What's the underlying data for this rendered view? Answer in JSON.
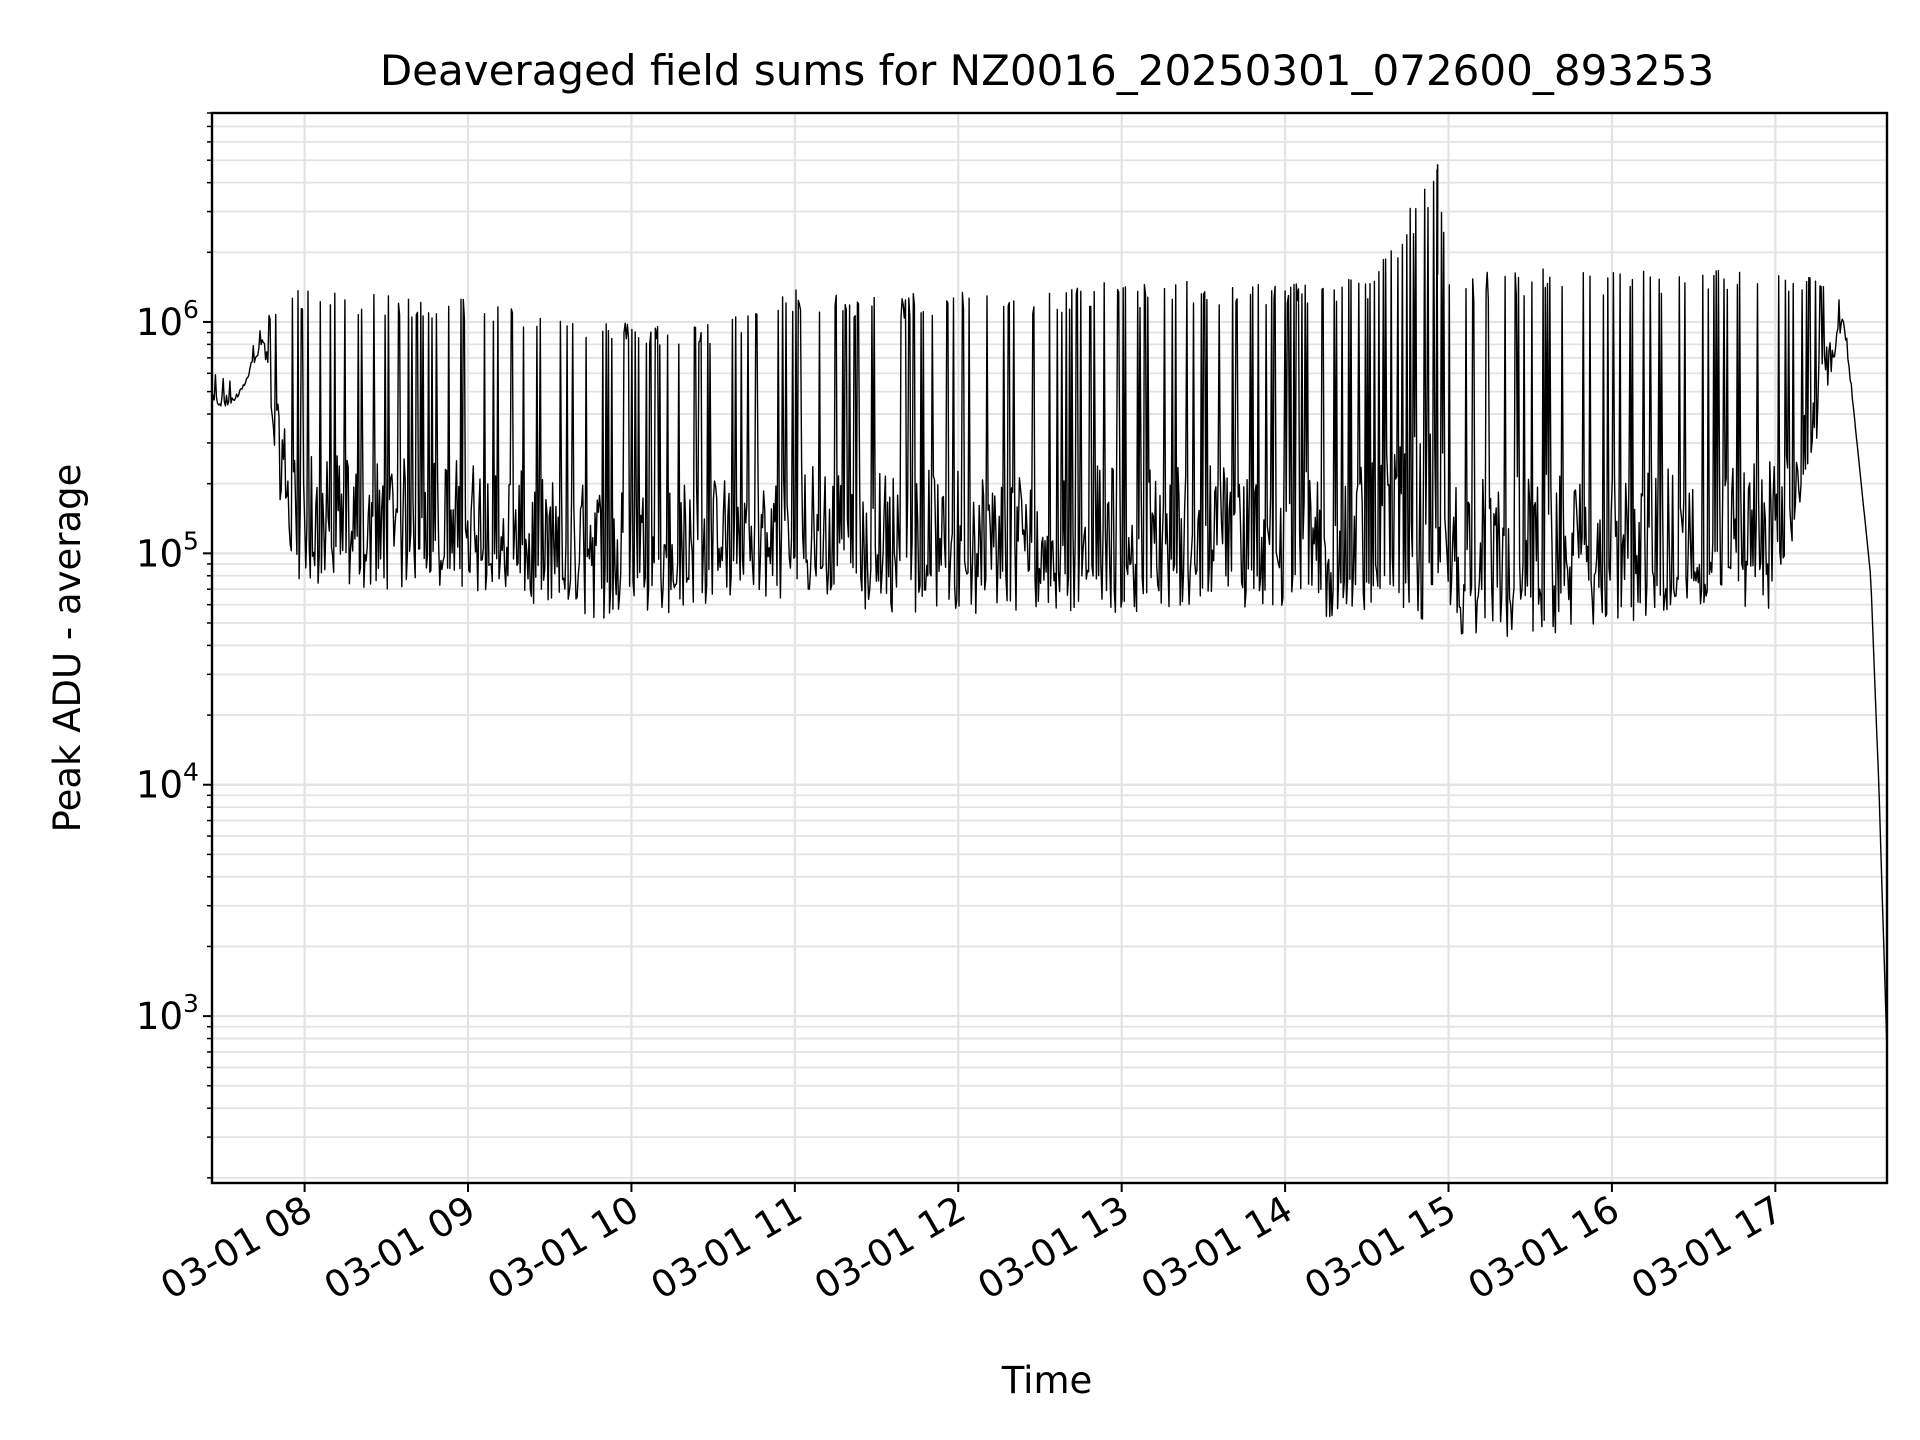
{
  "chart_data": {
    "type": "line",
    "title": "Deaveraged field sums for NZ0016_20250301_072600_893253",
    "xlabel": "Time",
    "ylabel": "Peak ADU - average",
    "yscale": "log",
    "ylim": [
      190,
      8000000
    ],
    "xlim": [
      "03-01 07:26",
      "03-01 17:41"
    ],
    "grid": true,
    "legend": "none",
    "line_color": "#000000",
    "x_ticks": [
      "03-01 08",
      "03-01 09",
      "03-01 10",
      "03-01 11",
      "03-01 12",
      "03-01 13",
      "03-01 14",
      "03-01 15",
      "03-01 16",
      "03-01 17"
    ],
    "y_ticks": [
      {
        "value": 1000,
        "base": "10",
        "exp": "3"
      },
      {
        "value": 10000,
        "base": "10",
        "exp": "4"
      },
      {
        "value": 100000,
        "base": "10",
        "exp": "5"
      },
      {
        "value": 1000000,
        "base": "10",
        "exp": "6"
      }
    ],
    "series": [
      {
        "x": [
          "03-01 07:26",
          "03-01 07:35",
          "03-01 07:45",
          "03-01 07:50",
          "03-01 07:55",
          "03-01 08:00",
          "03-01 08:30",
          "03-01 09:00",
          "03-01 09:30",
          "03-01 10:00",
          "03-01 10:30",
          "03-01 11:00",
          "03-01 11:30",
          "03-01 12:00",
          "03-01 12:30",
          "03-01 13:00",
          "03-01 13:30",
          "03-01 14:00",
          "03-01 14:30",
          "03-01 14:56",
          "03-01 15:00",
          "03-01 15:30",
          "03-01 16:00",
          "03-01 16:30",
          "03-01 17:00",
          "03-01 17:15",
          "03-01 17:25",
          "03-01 17:30",
          "03-01 17:35",
          "03-01 17:38",
          "03-01 17:40",
          "03-01 17:41"
        ],
        "upper": [
          600000,
          550000,
          1000000,
          1200000,
          1400000,
          1400000,
          1300000,
          1300000,
          1100000,
          1000000,
          1000000,
          1400000,
          1300000,
          1400000,
          1400000,
          1500000,
          1500000,
          1500000,
          1600000,
          4800000,
          1600000,
          1700000,
          1700000,
          1700000,
          1700000,
          1600000,
          1200000,
          300000,
          80000,
          10000,
          1700,
          700
        ],
        "lower": [
          400000,
          450000,
          800000,
          200000,
          90000,
          70000,
          70000,
          70000,
          55000,
          50000,
          60000,
          65000,
          55000,
          55000,
          55000,
          55000,
          60000,
          52000,
          50000,
          48000,
          45000,
          40000,
          48000,
          50000,
          55000,
          300000,
          1000000,
          300000,
          80000,
          10000,
          1700,
          700
        ]
      }
    ]
  }
}
